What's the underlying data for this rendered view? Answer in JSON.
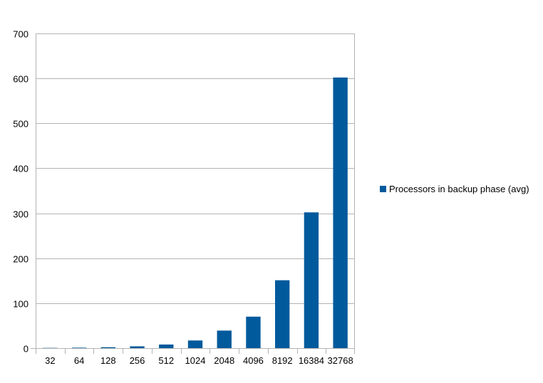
{
  "chart_data": {
    "type": "bar",
    "categories": [
      "32",
      "64",
      "128",
      "256",
      "512",
      "1024",
      "2048",
      "4096",
      "8192",
      "16384",
      "32768"
    ],
    "series": [
      {
        "name": "Processors in backup phase (avg)",
        "values": [
          0.5,
          1,
          2,
          4,
          8,
          17,
          39,
          70,
          151,
          302,
          602
        ]
      }
    ],
    "title": "",
    "xlabel": "",
    "ylabel": "",
    "ylim": [
      0,
      700
    ],
    "yticks": [
      "0",
      "100",
      "200",
      "300",
      "400",
      "500",
      "600",
      "700"
    ],
    "grid": true,
    "legend_position": "right",
    "colors": {
      "bar": "#005a9c",
      "grid": "#b3b3b3",
      "axis": "#b3b3b3"
    }
  }
}
